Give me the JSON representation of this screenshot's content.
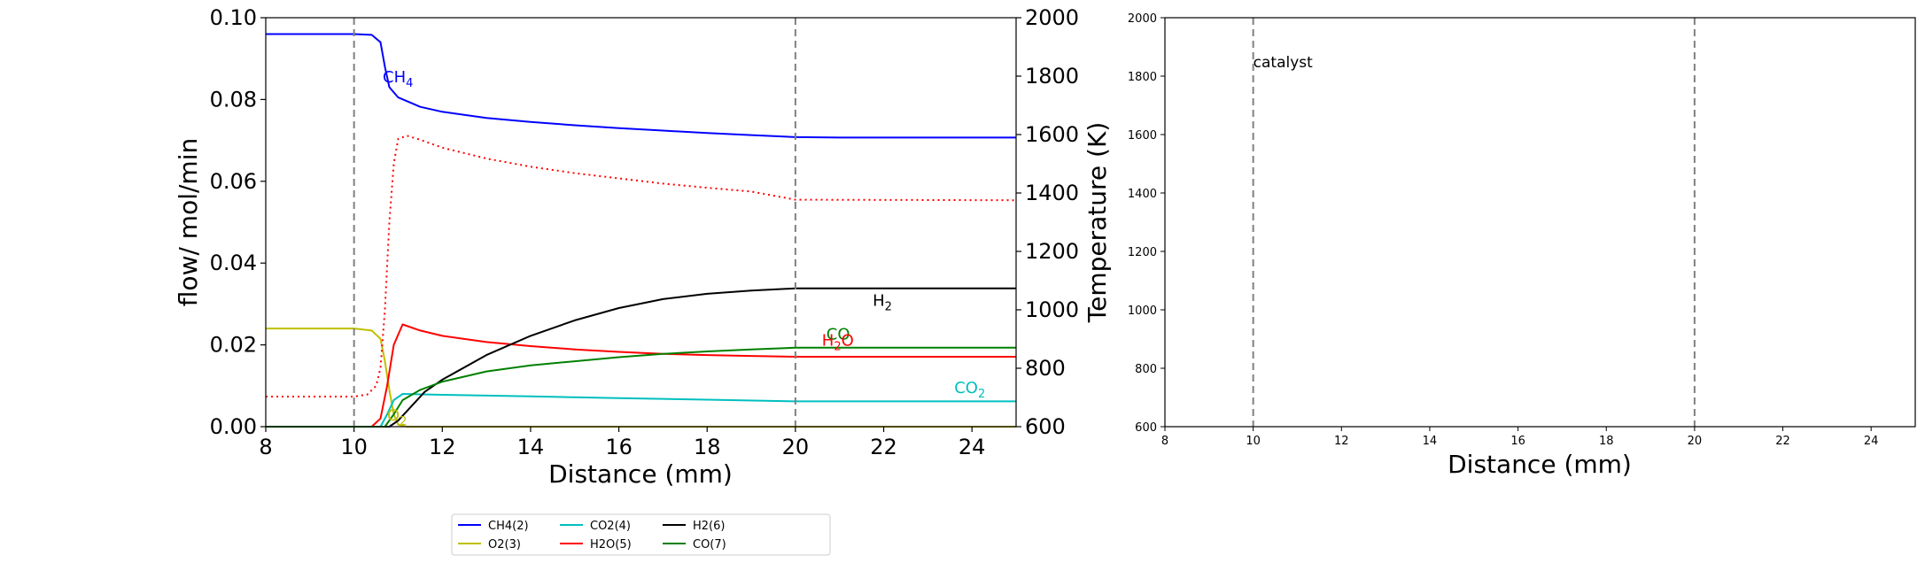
{
  "chart_data": [
    {
      "type": "line",
      "xlabel": "Distance (mm)",
      "ylabel": "flow/ mol/min",
      "y2label": "Temperature (K)",
      "xlim": [
        8,
        25
      ],
      "ylim": [
        0,
        0.1
      ],
      "y2lim": [
        600,
        2000
      ],
      "xticks": [
        8,
        10,
        12,
        14,
        16,
        18,
        20,
        22,
        24
      ],
      "yticks": [
        0.0,
        0.02,
        0.04,
        0.06,
        0.08,
        0.1
      ],
      "y2ticks": [
        600,
        800,
        1000,
        1200,
        1400,
        1600,
        1800,
        2000
      ],
      "vlines": [
        10,
        20
      ],
      "series": [
        {
          "name": "CH4(2)",
          "color": "#0000ff",
          "points": [
            [
              8,
              0.096
            ],
            [
              10,
              0.096
            ],
            [
              10.4,
              0.0958
            ],
            [
              10.6,
              0.094
            ],
            [
              10.7,
              0.088
            ],
            [
              10.8,
              0.083
            ],
            [
              11,
              0.0805
            ],
            [
              11.5,
              0.0782
            ],
            [
              12,
              0.077
            ],
            [
              13,
              0.0755
            ],
            [
              14,
              0.0745
            ],
            [
              15,
              0.0737
            ],
            [
              16,
              0.073
            ],
            [
              17,
              0.0724
            ],
            [
              18,
              0.0718
            ],
            [
              19,
              0.0713
            ],
            [
              20,
              0.0708
            ],
            [
              21,
              0.0707
            ],
            [
              25,
              0.0707
            ]
          ]
        },
        {
          "name": "O2(3)",
          "color": "#bfbf00",
          "points": [
            [
              8,
              0.024
            ],
            [
              10,
              0.024
            ],
            [
              10.4,
              0.0235
            ],
            [
              10.6,
              0.0215
            ],
            [
              10.7,
              0.016
            ],
            [
              10.8,
              0.009
            ],
            [
              10.9,
              0.003
            ],
            [
              11,
              0.0005
            ],
            [
              11.2,
              0
            ],
            [
              25,
              0
            ]
          ]
        },
        {
          "name": "CO2(4)",
          "color": "#00bfbf",
          "points": [
            [
              8,
              0
            ],
            [
              10.6,
              0
            ],
            [
              10.75,
              0.003
            ],
            [
              10.9,
              0.0065
            ],
            [
              11.1,
              0.008
            ],
            [
              12,
              0.0078
            ],
            [
              14,
              0.0074
            ],
            [
              16,
              0.007
            ],
            [
              18,
              0.0066
            ],
            [
              20,
              0.0062
            ],
            [
              25,
              0.0062
            ]
          ]
        },
        {
          "name": "H2O(5)",
          "color": "#ff0000",
          "points": [
            [
              8,
              0
            ],
            [
              10.4,
              0
            ],
            [
              10.6,
              0.002
            ],
            [
              10.75,
              0.01
            ],
            [
              10.9,
              0.02
            ],
            [
              11.1,
              0.025
            ],
            [
              11.5,
              0.0235
            ],
            [
              12,
              0.0222
            ],
            [
              13,
              0.0207
            ],
            [
              14,
              0.0197
            ],
            [
              15,
              0.0189
            ],
            [
              16,
              0.0183
            ],
            [
              17,
              0.0178
            ],
            [
              18,
              0.0175
            ],
            [
              19,
              0.0173
            ],
            [
              20,
              0.0171
            ],
            [
              25,
              0.0171
            ]
          ]
        },
        {
          "name": "H2(6)",
          "color": "#000000",
          "points": [
            [
              8,
              0
            ],
            [
              10.8,
              0
            ],
            [
              11,
              0.0015
            ],
            [
              11.3,
              0.005
            ],
            [
              11.6,
              0.0085
            ],
            [
              12,
              0.0115
            ],
            [
              13,
              0.0175
            ],
            [
              14,
              0.0222
            ],
            [
              15,
              0.026
            ],
            [
              16,
              0.029
            ],
            [
              17,
              0.0312
            ],
            [
              18,
              0.0325
            ],
            [
              19,
              0.0333
            ],
            [
              20,
              0.0338
            ],
            [
              25,
              0.0338
            ]
          ]
        },
        {
          "name": "CO(7)",
          "color": "#008000",
          "points": [
            [
              8,
              0
            ],
            [
              10.7,
              0
            ],
            [
              10.9,
              0.003
            ],
            [
              11.1,
              0.0065
            ],
            [
              11.5,
              0.009
            ],
            [
              12,
              0.011
            ],
            [
              13,
              0.0135
            ],
            [
              14,
              0.015
            ],
            [
              15,
              0.016
            ],
            [
              16,
              0.017
            ],
            [
              17,
              0.0178
            ],
            [
              18,
              0.0184
            ],
            [
              19,
              0.0189
            ],
            [
              20,
              0.0193
            ],
            [
              25,
              0.0193
            ]
          ]
        },
        {
          "name": "T",
          "axis": "y2",
          "style": "dotted",
          "color": "#ff0000",
          "points": [
            [
              8,
              703
            ],
            [
              10,
              703
            ],
            [
              10.3,
              710
            ],
            [
              10.5,
              740
            ],
            [
              10.6,
              800
            ],
            [
              10.7,
              1000
            ],
            [
              10.8,
              1300
            ],
            [
              10.9,
              1500
            ],
            [
              11,
              1585
            ],
            [
              11.2,
              1596
            ],
            [
              11.5,
              1582
            ],
            [
              12,
              1555
            ],
            [
              13,
              1518
            ],
            [
              14,
              1490
            ],
            [
              15,
              1468
            ],
            [
              16,
              1450
            ],
            [
              17,
              1432
            ],
            [
              18,
              1418
            ],
            [
              19,
              1405
            ],
            [
              20,
              1377
            ],
            [
              25,
              1375
            ]
          ]
        }
      ],
      "annotations": [
        {
          "base": "CH",
          "sub": "4",
          "x": 10.65,
          "y": 0.0842,
          "color": "#0000ff"
        },
        {
          "base": "H",
          "sub": "2",
          "x": 21.75,
          "y": 0.0295,
          "color": "#000000"
        },
        {
          "base": "CO",
          "sub": "",
          "x": 20.7,
          "y": 0.0213,
          "color": "#008000"
        },
        {
          "base": "H",
          "sub": "2",
          "tail": "O",
          "x": 20.6,
          "y": 0.0198,
          "color": "#ff0000"
        },
        {
          "base": "CO",
          "sub": "2",
          "x": 23.6,
          "y": 0.0082,
          "color": "#00bfbf"
        },
        {
          "base": "O",
          "sub": "2",
          "x": 10.75,
          "y": 0.0015,
          "color": "#bfbf00"
        }
      ],
      "legend": [
        "CH4(2)",
        "O2(3)",
        "CO2(4)",
        "H2O(5)",
        "H2(6)",
        "CO(7)"
      ],
      "legend_position": "below"
    },
    {
      "type": "line",
      "xlabel": "Distance (mm)",
      "xlim": [
        8,
        25
      ],
      "ylim": [
        600,
        2000
      ],
      "xticks": [
        8,
        10,
        12,
        14,
        16,
        18,
        20,
        22,
        24
      ],
      "yticks": [
        600,
        800,
        1000,
        1200,
        1400,
        1600,
        1800,
        2000
      ],
      "vlines": [
        10,
        20
      ],
      "annotation": {
        "text": "catalyst",
        "x": 10,
        "y": 1830
      },
      "series": []
    }
  ]
}
